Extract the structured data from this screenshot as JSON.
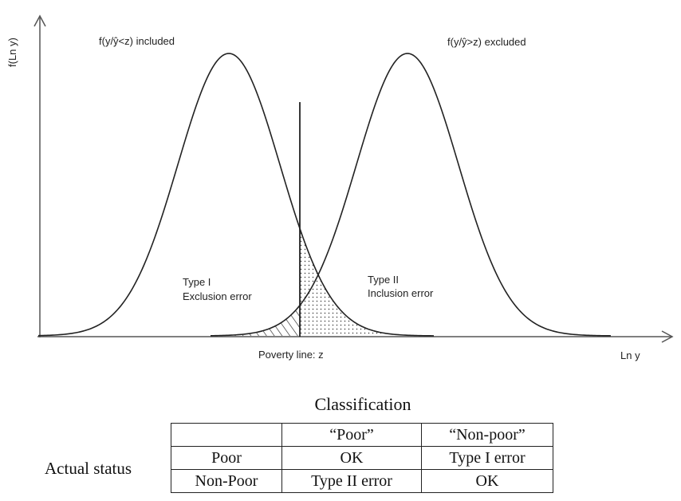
{
  "diagram": {
    "y_axis_label": "f(Ln y)",
    "x_axis_label": "Ln y",
    "left_curve_label": "f(y/ŷ<z) included",
    "right_curve_label": "f(y/ŷ>z) excluded",
    "type1_label": [
      "Type I",
      "Exclusion error"
    ],
    "type2_label": [
      "Type II",
      "Inclusion error"
    ],
    "poverty_line_label": "Poverty line: z"
  },
  "classification": {
    "title": "Classification",
    "row_header": "Actual status",
    "columns": [
      "",
      "“Poor”",
      "“Non-poor”"
    ],
    "rows": [
      [
        "Poor",
        "OK",
        "Type I error"
      ],
      [
        "Non-Poor",
        "Type II error",
        "OK"
      ]
    ]
  }
}
